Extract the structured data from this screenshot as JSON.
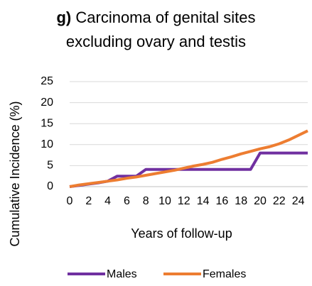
{
  "chart_data": {
    "type": "line",
    "panel_label": "g)",
    "title": "Carcinoma of genital sites excluding ovary and testis",
    "x_label": "Years of follow-up",
    "y_label": "Cumulative Incidence (%)",
    "x": [
      0,
      1,
      2,
      3,
      4,
      5,
      6,
      7,
      8,
      9,
      10,
      11,
      12,
      13,
      14,
      15,
      16,
      17,
      18,
      19,
      20,
      21,
      22,
      23,
      24,
      25
    ],
    "series": [
      {
        "name": "Males",
        "color": "#7030a0",
        "values": [
          0,
          0.3,
          0.6,
          0.9,
          1.3,
          2.5,
          2.5,
          2.5,
          4.1,
          4.1,
          4.1,
          4.1,
          4.1,
          4.1,
          4.1,
          4.1,
          4.1,
          4.1,
          4.1,
          4.1,
          8,
          8,
          8,
          8,
          8,
          8
        ]
      },
      {
        "name": "Females",
        "color": "#ed7d31",
        "values": [
          0,
          0.4,
          0.7,
          1.0,
          1.3,
          1.6,
          2.0,
          2.3,
          2.7,
          3.1,
          3.5,
          3.9,
          4.4,
          4.9,
          5.3,
          5.8,
          6.5,
          7.1,
          7.8,
          8.4,
          9.0,
          9.5,
          10.2,
          11.1,
          12.2,
          13.3
        ]
      }
    ],
    "xlim": [
      0,
      25
    ],
    "xticks": [
      0,
      2,
      4,
      6,
      8,
      10,
      12,
      14,
      16,
      18,
      20,
      22,
      24
    ],
    "ylim": [
      0,
      25
    ],
    "yticks": [
      0,
      5,
      10,
      15,
      20,
      25
    ],
    "grid": true,
    "legend": "bottom"
  }
}
